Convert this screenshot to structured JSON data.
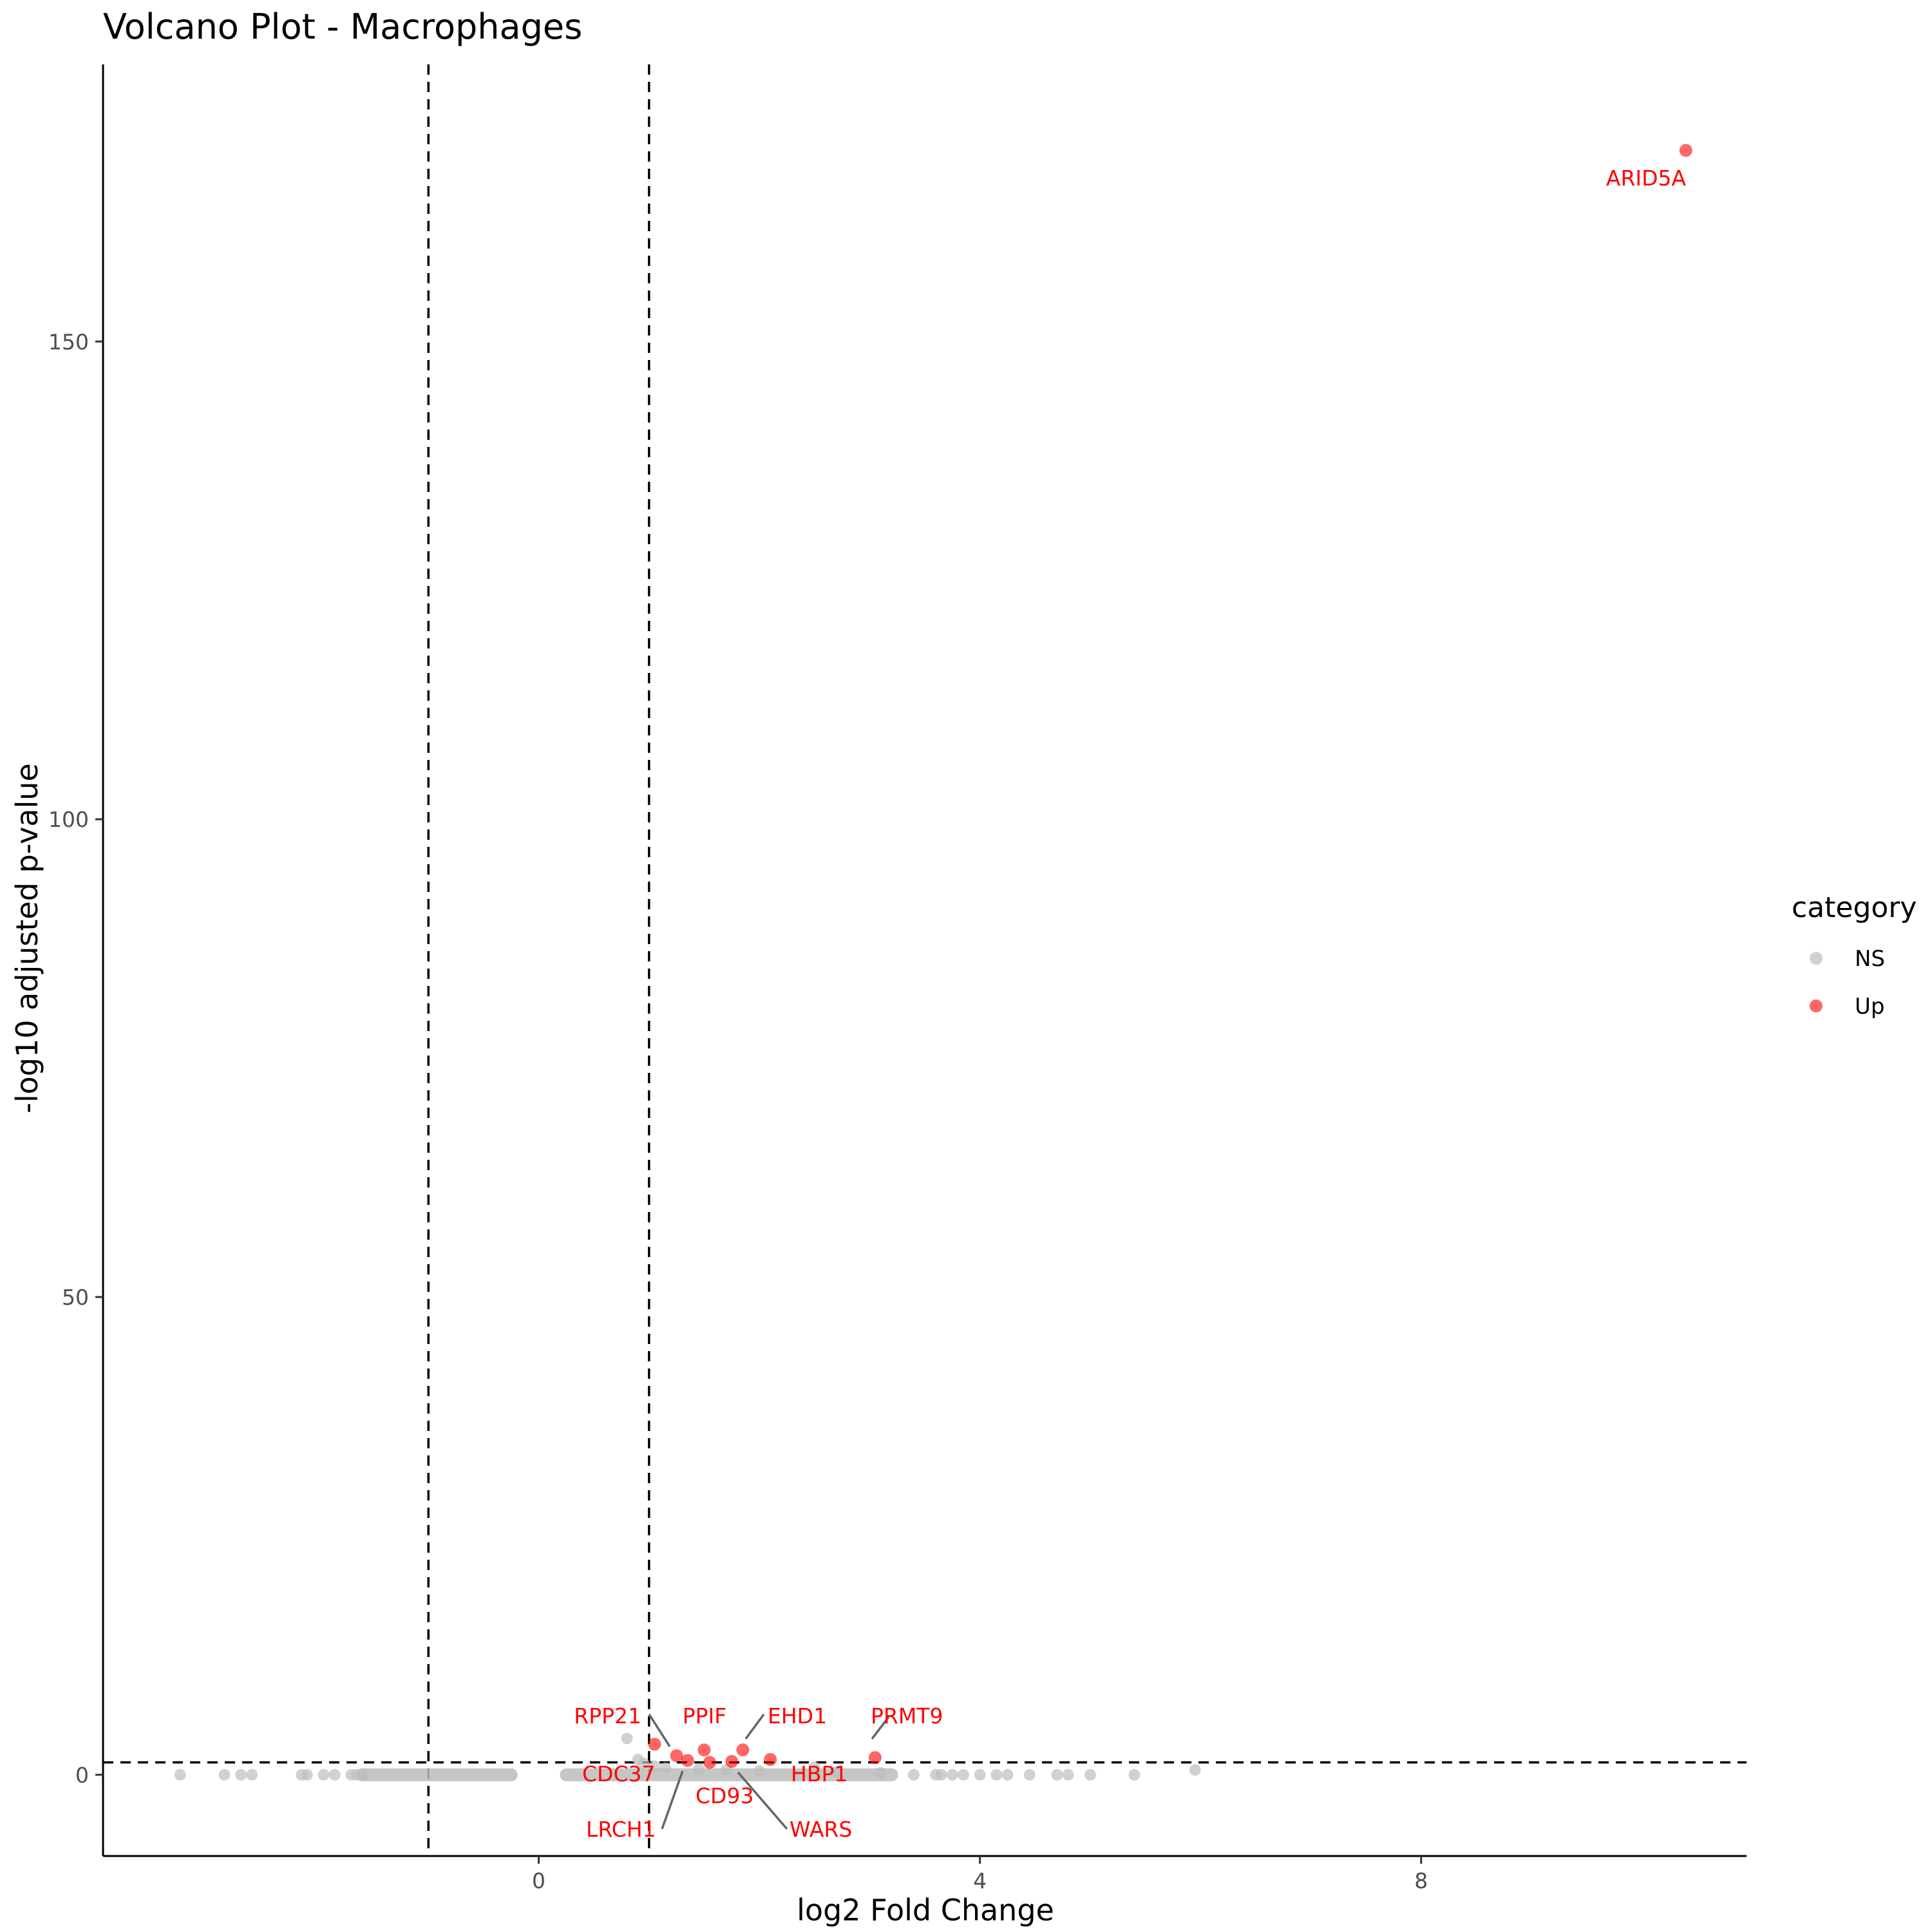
{
  "chart_data": {
    "type": "scatter",
    "title": "Volcano Plot - Macrophages",
    "xlabel": "log2 Fold Change",
    "ylabel": "-log10 adjusted p-value",
    "xlim": [
      -3.95,
      10.95
    ],
    "ylim": [
      -8.5,
      179
    ],
    "x_ticks": [
      0,
      4,
      8
    ],
    "y_ticks": [
      0,
      50,
      100,
      150
    ],
    "grid": false,
    "thresholds": {
      "fc_lines": [
        -1,
        1
      ],
      "p_line": 1.3
    },
    "legend": {
      "title": "category",
      "placement": "right",
      "entries": [
        {
          "name": "NS",
          "color": "#bdbdbd"
        },
        {
          "name": "Up",
          "color": "#ff0000"
        }
      ]
    },
    "series": [
      {
        "name": "NS",
        "color": "#bdbdbd",
        "points": [
          [
            -3.25,
            0
          ],
          [
            -2.85,
            0
          ],
          [
            -2.7,
            0
          ],
          [
            -2.6,
            0
          ],
          [
            -2.15,
            0
          ],
          [
            -2.1,
            0
          ],
          [
            -1.95,
            0
          ],
          [
            -1.85,
            0
          ],
          [
            -1.7,
            0
          ],
          [
            -1.65,
            0
          ],
          [
            -1.6,
            0
          ],
          [
            -1.6,
            0
          ],
          [
            -1.6,
            0
          ],
          [
            -1.6,
            0
          ],
          [
            -1.6,
            0
          ],
          [
            -1.6,
            0
          ],
          [
            -1.6,
            0
          ],
          [
            -1.6,
            0
          ],
          [
            3.4,
            0
          ],
          [
            3.6,
            0
          ],
          [
            3.65,
            0
          ],
          [
            3.75,
            0
          ],
          [
            3.85,
            0
          ],
          [
            4.0,
            0
          ],
          [
            4.15,
            0
          ],
          [
            4.25,
            0
          ],
          [
            4.45,
            0
          ],
          [
            4.7,
            0
          ],
          [
            4.8,
            0
          ],
          [
            5.0,
            0
          ],
          [
            5.4,
            0
          ],
          [
            5.95,
            0.5
          ],
          [
            0.8,
            3.8
          ],
          [
            0.9,
            1.6
          ],
          [
            0.95,
            1.2
          ],
          [
            1.05,
            0.9
          ],
          [
            1.15,
            0.7
          ],
          [
            1.45,
            0.6
          ],
          [
            1.7,
            0.5
          ],
          [
            2.0,
            0.4
          ],
          [
            2.5,
            0.8
          ],
          [
            2.7,
            0.3
          ],
          [
            3.1,
            0.2
          ]
        ]
      },
      {
        "name": "Up",
        "color": "#ff0000",
        "points": [
          [
            10.4,
            170.0,
            "ARID5A"
          ],
          [
            1.05,
            3.2,
            "RPP21"
          ],
          [
            1.25,
            2.0,
            "LRCH1"
          ],
          [
            1.35,
            1.5,
            "CDC37"
          ],
          [
            1.5,
            2.6,
            "PPIF"
          ],
          [
            1.55,
            1.3,
            "CD93"
          ],
          [
            1.75,
            1.4,
            "WARS"
          ],
          [
            1.85,
            2.6,
            "EHD1"
          ],
          [
            2.1,
            1.6,
            "HBP1"
          ],
          [
            3.05,
            1.8,
            "PRMT9"
          ]
        ]
      }
    ],
    "dense_bands": [
      {
        "x_from": -1.6,
        "x_to": -0.25,
        "y": 0
      },
      {
        "x_from": 0.25,
        "x_to": 3.2,
        "y": 0
      }
    ]
  }
}
